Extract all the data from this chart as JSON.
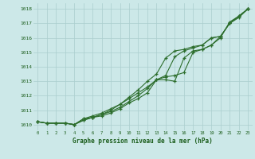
{
  "xlabel": "Graphe pression niveau de la mer (hPa)",
  "x": [
    0,
    1,
    2,
    3,
    4,
    5,
    6,
    7,
    8,
    9,
    10,
    11,
    12,
    13,
    14,
    15,
    16,
    17,
    18,
    19,
    20,
    21,
    22,
    23
  ],
  "line1": [
    1010.2,
    1010.1,
    1010.1,
    1010.1,
    1010.0,
    1010.4,
    1010.5,
    1010.7,
    1010.9,
    1011.2,
    1011.6,
    1012.0,
    1012.5,
    1013.1,
    1013.3,
    1013.4,
    1013.6,
    1015.0,
    1015.2,
    1015.5,
    1016.0,
    1017.1,
    1017.5,
    1018.0
  ],
  "line2": [
    1010.2,
    1010.1,
    1010.1,
    1010.1,
    1010.0,
    1010.3,
    1010.5,
    1010.7,
    1011.0,
    1011.4,
    1011.9,
    1012.4,
    1013.0,
    1013.5,
    1014.6,
    1015.1,
    1015.2,
    1015.4,
    1015.5,
    1016.0,
    1016.1,
    1017.0,
    1017.5,
    1018.0
  ],
  "line3": [
    1010.2,
    1010.1,
    1010.1,
    1010.1,
    1010.0,
    1010.3,
    1010.5,
    1010.6,
    1010.8,
    1011.1,
    1011.5,
    1011.8,
    1012.2,
    1013.1,
    1013.1,
    1013.0,
    1014.6,
    1015.1,
    1015.2,
    1015.5,
    1016.1,
    1017.0,
    1017.4,
    1018.0
  ],
  "line4": [
    1010.2,
    1010.1,
    1010.1,
    1010.1,
    1010.0,
    1010.4,
    1010.6,
    1010.8,
    1011.1,
    1011.4,
    1011.8,
    1012.2,
    1012.6,
    1013.1,
    1013.4,
    1014.7,
    1015.1,
    1015.3,
    1015.5,
    1016.0,
    1016.1,
    1017.0,
    1017.5,
    1018.0
  ],
  "ylim": [
    1009.6,
    1018.4
  ],
  "yticks": [
    1010,
    1011,
    1012,
    1013,
    1014,
    1015,
    1016,
    1017,
    1018
  ],
  "xticks": [
    0,
    1,
    2,
    3,
    4,
    5,
    6,
    7,
    8,
    9,
    10,
    11,
    12,
    13,
    14,
    15,
    16,
    17,
    18,
    19,
    20,
    21,
    22,
    23
  ],
  "line_color": "#2d6e2d",
  "bg_color": "#cce8e8",
  "grid_color": "#aacece",
  "label_color": "#1a5c1a",
  "title_color": "#1a5c1a"
}
